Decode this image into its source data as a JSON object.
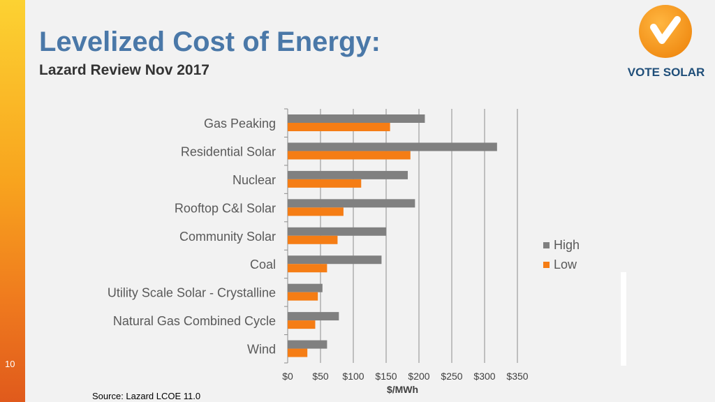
{
  "slide": {
    "title": "Levelized Cost of Energy:",
    "subtitle": "Lazard Review Nov 2017",
    "slide_number": "10",
    "source": "Source: Lazard LCOE 11.0"
  },
  "logo": {
    "text": "VOTE SOLAR",
    "icon": "checkmark-icon",
    "color": "#f7941d"
  },
  "colors": {
    "high": "#808080",
    "low": "#f57d15",
    "title": "#4a78a8"
  },
  "chart_data": {
    "type": "bar",
    "orientation": "horizontal",
    "title": "",
    "xlabel": "$/MWh",
    "ylabel": "",
    "xlim": [
      0,
      350
    ],
    "xticks": [
      0,
      50,
      100,
      150,
      200,
      250,
      300,
      350
    ],
    "tick_labels": [
      "$0",
      "$50",
      "$100",
      "$150",
      "$200",
      "$250",
      "$300",
      "$350"
    ],
    "grid": true,
    "legend_position": "right",
    "categories": [
      "Gas Peaking",
      "Residential Solar",
      "Nuclear",
      "Rooftop C&I Solar",
      "Community Solar",
      "Coal",
      "Utility Scale Solar - Crystalline",
      "Natural Gas Combined Cycle",
      "Wind"
    ],
    "series": [
      {
        "name": "High",
        "color": "#808080",
        "values": [
          209,
          319,
          183,
          194,
          150,
          143,
          53,
          78,
          60
        ]
      },
      {
        "name": "Low",
        "color": "#f57d15",
        "values": [
          156,
          187,
          112,
          85,
          76,
          60,
          46,
          42,
          30
        ]
      }
    ]
  }
}
